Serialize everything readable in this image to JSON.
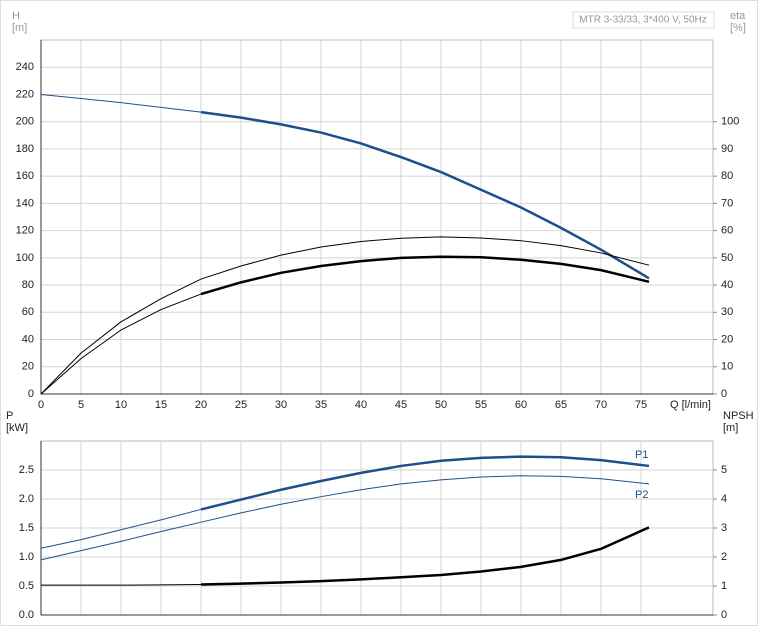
{
  "chart_data": [
    {
      "type": "line",
      "ylabel": [
        "H",
        "[m]"
      ],
      "y2label": [
        "eta",
        "[%]"
      ],
      "xlabel": "Q [l/min]",
      "annotation": "MTR 3-33/33, 3*400 V, 50Hz",
      "x": [
        0,
        5,
        10,
        15,
        20,
        25,
        30,
        35,
        40,
        45,
        50,
        55,
        60,
        65,
        70,
        76
      ],
      "xlim": [
        0,
        84
      ],
      "xticks": [
        0,
        5,
        10,
        15,
        20,
        25,
        30,
        35,
        40,
        45,
        50,
        55,
        60,
        65,
        70,
        75
      ],
      "ylim": [
        0,
        260
      ],
      "yticks": [
        0,
        20,
        40,
        60,
        80,
        100,
        120,
        140,
        160,
        180,
        200,
        220,
        240
      ],
      "y2lim": [
        0,
        130
      ],
      "y2ticks": [
        0,
        10,
        20,
        30,
        40,
        50,
        60,
        70,
        80,
        90,
        100
      ],
      "grid": true,
      "thick_from": 20,
      "series": [
        {
          "color": "#1d4f8c",
          "values": [
            220,
            217,
            214,
            210.5,
            207,
            203,
            198,
            192,
            184,
            174,
            163,
            150,
            137,
            122,
            106,
            85
          ]
        },
        {
          "color": "#000000",
          "axis": "y2",
          "values": [
            0,
            15,
            26.5,
            35,
            42.2,
            47,
            51,
            54,
            56,
            57.2,
            57.7,
            57.3,
            56.3,
            54.5,
            51.8,
            47.3
          ],
          "thin": true
        },
        {
          "color": "#000000",
          "axis": "y2",
          "values": [
            0,
            13,
            23.5,
            31,
            36.7,
            41,
            44.5,
            47,
            48.8,
            50,
            50.4,
            50.2,
            49.3,
            47.8,
            45.5,
            41.2
          ]
        }
      ]
    },
    {
      "type": "line",
      "ylabel": [
        "P",
        "[kW]"
      ],
      "y2label": [
        "NPSH",
        "[m]"
      ],
      "x": [
        0,
        5,
        10,
        15,
        20,
        25,
        30,
        35,
        40,
        45,
        50,
        55,
        60,
        65,
        70,
        76
      ],
      "xlim": [
        0,
        84
      ],
      "xticks": [
        0,
        5,
        10,
        15,
        20,
        25,
        30,
        35,
        40,
        45,
        50,
        55,
        60,
        65,
        70,
        75
      ],
      "ylim": [
        0,
        3
      ],
      "yticks": [
        {
          "value": 0,
          "label": "0.0"
        },
        0.5,
        {
          "value": 1,
          "label": "1.0"
        },
        1.5,
        {
          "value": 2,
          "label": "2.0"
        },
        2.5
      ],
      "y2lim": [
        0,
        6
      ],
      "y2ticks": [
        0,
        1,
        2,
        3,
        4,
        5
      ],
      "grid": true,
      "thick_from": 20,
      "series": [
        {
          "name": "P1",
          "color": "#1d4f8c",
          "values": [
            1.15,
            1.3,
            1.47,
            1.64,
            1.82,
            1.99,
            2.16,
            2.31,
            2.45,
            2.57,
            2.66,
            2.71,
            2.73,
            2.72,
            2.67,
            2.57
          ]
        },
        {
          "name": "P2",
          "color": "#1d4f8c",
          "values": [
            0.95,
            1.11,
            1.27,
            1.44,
            1.6,
            1.76,
            1.91,
            2.04,
            2.16,
            2.26,
            2.33,
            2.38,
            2.4,
            2.39,
            2.35,
            2.26
          ],
          "thin": true
        },
        {
          "color": "#000000",
          "axis": "y2",
          "values": [
            1.03,
            1.03,
            1.03,
            1.04,
            1.05,
            1.08,
            1.12,
            1.17,
            1.23,
            1.3,
            1.38,
            1.5,
            1.66,
            1.9,
            2.28,
            3.02
          ]
        }
      ]
    }
  ]
}
